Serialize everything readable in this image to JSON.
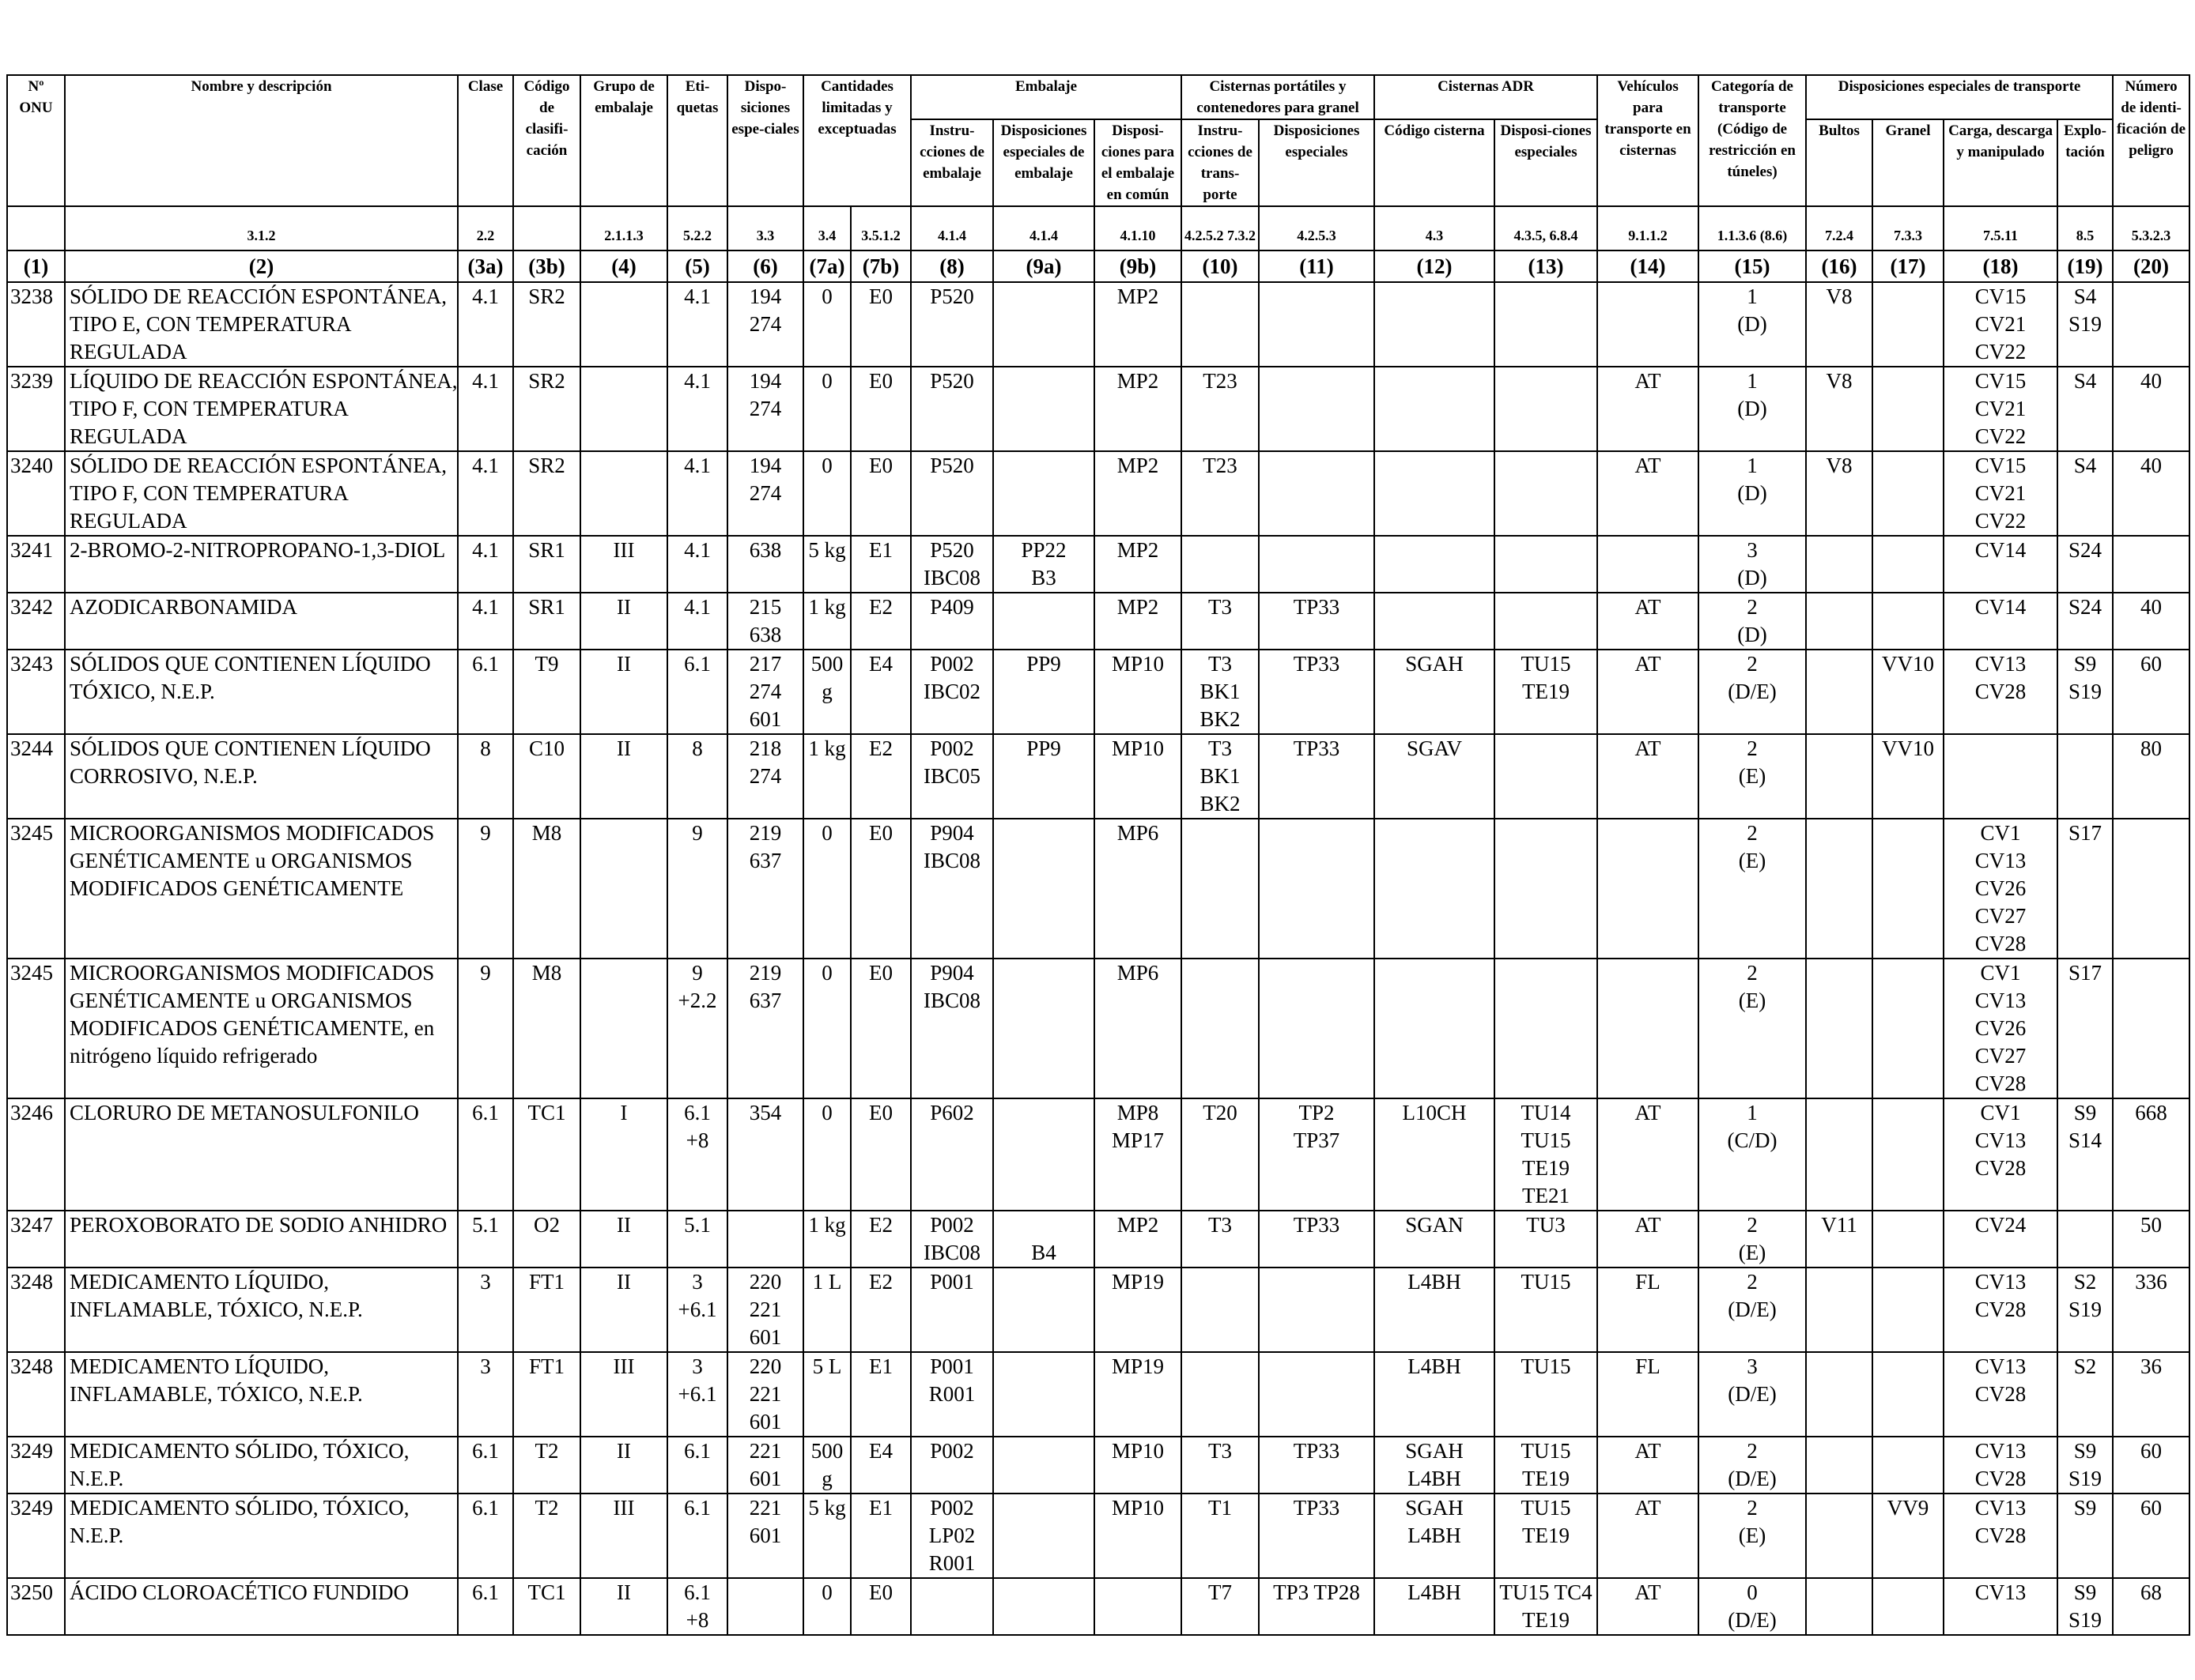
{
  "table": {
    "header": {
      "un_no": "Nº ONU",
      "name": "Nombre y descripción",
      "clase": "Clase",
      "codigo": "Código de clasifi-cación",
      "grupo": "Grupo de embalaje",
      "etiquetas": "Eti-quetas",
      "disposiciones": "Dispo-siciones espe-ciales",
      "cantidades": "Cantidades limitadas y exceptuadas",
      "embalaje": "Embalaje",
      "embalaje_instr": "Instru-cciones de embalaje",
      "embalaje_disp": "Disposiciones especiales de embalaje",
      "embalaje_comun": "Disposi-ciones para el embalaje en común",
      "cisternas_port": "Cisternas portátiles y contenedores para granel",
      "cisternas_instr": "Instru-cciones de trans-porte",
      "cisternas_disp": "Disposiciones especiales",
      "cisternas_adr": "Cisternas ADR",
      "adr_codigo": "Código cisterna",
      "adr_disp": "Disposi-ciones especiales",
      "vehiculos": "Vehículos para transporte en cisternas",
      "categoria": "Categoría de transporte (Código de restricción en túneles)",
      "disp_transporte": "Disposiciones especiales de transporte",
      "bultos": "Bultos",
      "granel": "Granel",
      "carga": "Carga, descarga y manipulado",
      "explotacion": "Explo-tación",
      "numero_peligro": "Número de identi-ficación de peligro"
    },
    "refs": [
      "",
      "3.1.2",
      "2.2",
      "",
      "2.1.1.3",
      "5.2.2",
      "3.3",
      "3.4",
      "3.5.1.2",
      "4.1.4",
      "4.1.4",
      "4.1.10",
      "4.2.5.2 7.3.2",
      "4.2.5.3",
      "4.3",
      "4.3.5, 6.8.4",
      "9.1.1.2",
      "1.1.3.6 (8.6)",
      "7.2.4",
      "7.3.3",
      "7.5.11",
      "8.5",
      "5.3.2.3"
    ],
    "col_numbers": [
      "(1)",
      "(2)",
      "(3a)",
      "(3b)",
      "(4)",
      "(5)",
      "(6)",
      "(7a)",
      "(7b)",
      "(8)",
      "(9a)",
      "(9b)",
      "(10)",
      "(11)",
      "(12)",
      "(13)",
      "(14)",
      "(15)",
      "(16)",
      "(17)",
      "(18)",
      "(19)",
      "(20)"
    ],
    "rows": [
      [
        "3238",
        [
          "SÓLIDO DE REACCIÓN ESPONTÁNEA,",
          "TIPO E, CON TEMPERATURA",
          "REGULADA"
        ],
        "4.1",
        "SR2",
        "",
        [
          "4.1"
        ],
        [
          "194",
          "274"
        ],
        "0",
        "E0",
        [
          "P520"
        ],
        [],
        [
          "MP2"
        ],
        [],
        [],
        [],
        [],
        "",
        [
          "1",
          "(D)"
        ],
        "V8",
        "",
        [
          "CV15",
          "CV21",
          "CV22"
        ],
        [
          "S4",
          "S19"
        ],
        ""
      ],
      [
        "3239",
        [
          "LÍQUIDO DE REACCIÓN ESPONTÁNEA,",
          "TIPO F, CON TEMPERATURA",
          "REGULADA"
        ],
        "4.1",
        "SR2",
        "",
        [
          "4.1"
        ],
        [
          "194",
          "274"
        ],
        "0",
        "E0",
        [
          "P520"
        ],
        [],
        [
          "MP2"
        ],
        [
          "T23"
        ],
        [],
        [],
        [],
        "AT",
        [
          "1",
          "(D)"
        ],
        "V8",
        "",
        [
          "CV15",
          "CV21",
          "CV22"
        ],
        [
          "S4"
        ],
        "40"
      ],
      [
        "3240",
        [
          "SÓLIDO DE REACCIÓN ESPONTÁNEA,",
          "TIPO F, CON TEMPERATURA",
          "REGULADA"
        ],
        "4.1",
        "SR2",
        "",
        [
          "4.1"
        ],
        [
          "194",
          "274"
        ],
        "0",
        "E0",
        [
          "P520"
        ],
        [],
        [
          "MP2"
        ],
        [
          "T23"
        ],
        [],
        [],
        [],
        "AT",
        [
          "1",
          "(D)"
        ],
        "V8",
        "",
        [
          "CV15",
          "CV21",
          "CV22"
        ],
        [
          "S4"
        ],
        "40"
      ],
      [
        "3241",
        [
          "2-BROMO-2-NITROPROPANO-1,3-DIOL"
        ],
        "4.1",
        "SR1",
        "III",
        [
          "4.1"
        ],
        [
          "638"
        ],
        "5 kg",
        "E1",
        [
          "P520",
          "IBC08"
        ],
        [
          "PP22",
          "B3"
        ],
        [
          "MP2"
        ],
        [],
        [],
        [],
        [],
        "",
        [
          "3",
          "(D)"
        ],
        "",
        "",
        [
          "CV14"
        ],
        [
          "S24"
        ],
        ""
      ],
      [
        "3242",
        [
          "AZODICARBONAMIDA"
        ],
        "4.1",
        "SR1",
        "II",
        [
          "4.1"
        ],
        [
          "215",
          "638"
        ],
        "1 kg",
        "E2",
        [
          "P409"
        ],
        [],
        [
          "MP2"
        ],
        [
          "T3"
        ],
        [
          "TP33"
        ],
        [],
        [],
        "AT",
        [
          "2",
          "(D)"
        ],
        "",
        "",
        [
          "CV14"
        ],
        [
          "S24"
        ],
        "40"
      ],
      [
        "3243",
        [
          "SÓLIDOS QUE CONTIENEN LÍQUIDO",
          "TÓXICO, N.E.P."
        ],
        "6.1",
        "T9",
        "II",
        [
          "6.1"
        ],
        [
          "217",
          "274",
          "601"
        ],
        "500 g",
        "E4",
        [
          "P002",
          "IBC02"
        ],
        [
          "PP9"
        ],
        [
          "MP10"
        ],
        [
          "T3",
          "BK1",
          "BK2"
        ],
        [
          "TP33"
        ],
        [
          "SGAH"
        ],
        [
          "TU15",
          "TE19"
        ],
        "AT",
        [
          "2",
          "(D/E)"
        ],
        "",
        "VV10",
        [
          "CV13",
          "CV28"
        ],
        [
          "S9",
          "S19"
        ],
        "60"
      ],
      [
        "3244",
        [
          "SÓLIDOS QUE CONTIENEN LÍQUIDO",
          "CORROSIVO, N.E.P."
        ],
        "8",
        "C10",
        "II",
        [
          "8"
        ],
        [
          "218",
          "274"
        ],
        "1 kg",
        "E2",
        [
          "P002",
          "IBC05"
        ],
        [
          "PP9"
        ],
        [
          "MP10"
        ],
        [
          "T3",
          "BK1",
          "BK2"
        ],
        [
          "TP33"
        ],
        [
          "SGAV"
        ],
        [],
        "AT",
        [
          "2",
          "(E)"
        ],
        "",
        "VV10",
        [],
        [],
        "80"
      ],
      [
        "3245",
        [
          "MICROORGANISMOS MODIFICADOS",
          "GENÉTICAMENTE u ORGANISMOS",
          "MODIFICADOS GENÉTICAMENTE"
        ],
        "9",
        "M8",
        "",
        [
          "9"
        ],
        [
          "219",
          "637"
        ],
        "0",
        "E0",
        [
          "P904",
          "IBC08"
        ],
        [],
        [
          "MP6"
        ],
        [],
        [],
        [],
        [],
        "",
        [
          "2",
          "(E)"
        ],
        "",
        "",
        [
          "CV1",
          "CV13",
          "CV26",
          "CV27",
          "CV28"
        ],
        [
          "S17"
        ],
        ""
      ],
      [
        "3245",
        [
          "MICROORGANISMOS MODIFICADOS",
          "GENÉTICAMENTE u ORGANISMOS",
          "MODIFICADOS GENÉTICAMENTE, en",
          "nitrógeno líquido refrigerado"
        ],
        "9",
        "M8",
        "",
        [
          "9",
          "+2.2"
        ],
        [
          "219",
          "637"
        ],
        "0",
        "E0",
        [
          "P904",
          "IBC08"
        ],
        [],
        [
          "MP6"
        ],
        [],
        [],
        [],
        [],
        "",
        [
          "2",
          "(E)"
        ],
        "",
        "",
        [
          "CV1",
          "CV13",
          "CV26",
          "CV27",
          "CV28"
        ],
        [
          "S17"
        ],
        ""
      ],
      [
        "3246",
        [
          "CLORURO DE METANOSULFONILO"
        ],
        "6.1",
        "TC1",
        "I",
        [
          "6.1",
          "+8"
        ],
        [
          "354"
        ],
        "0",
        "E0",
        [
          "P602"
        ],
        [],
        [
          "MP8",
          "MP17"
        ],
        [
          "T20"
        ],
        [
          "TP2",
          "TP37"
        ],
        [
          "L10CH"
        ],
        [
          "TU14",
          "TU15",
          "TE19",
          "TE21"
        ],
        "AT",
        [
          "1",
          "(C/D)"
        ],
        "",
        "",
        [
          "CV1",
          "CV13",
          "CV28"
        ],
        [
          "S9",
          "S14"
        ],
        "668"
      ],
      [
        "3247",
        [
          "PEROXOBORATO DE SODIO ANHIDRO"
        ],
        "5.1",
        "O2",
        "II",
        [
          "5.1"
        ],
        [],
        "1 kg",
        "E2",
        [
          "P002",
          "IBC08"
        ],
        [
          "",
          "B4"
        ],
        [
          "MP2"
        ],
        [
          "T3"
        ],
        [
          "TP33"
        ],
        [
          "SGAN"
        ],
        [
          "TU3"
        ],
        "AT",
        [
          "2",
          "(E)"
        ],
        "V11",
        "",
        [
          "CV24"
        ],
        [],
        "50"
      ],
      [
        "3248",
        [
          "MEDICAMENTO LÍQUIDO,",
          "INFLAMABLE, TÓXICO, N.E.P."
        ],
        "3",
        "FT1",
        "II",
        [
          "3",
          "+6.1"
        ],
        [
          "220",
          "221",
          "601"
        ],
        "1 L",
        "E2",
        [
          "P001"
        ],
        [],
        [
          "MP19"
        ],
        [],
        [],
        [
          "L4BH"
        ],
        [
          "TU15"
        ],
        "FL",
        [
          "2",
          "(D/E)"
        ],
        "",
        "",
        [
          "CV13",
          "CV28"
        ],
        [
          "S2",
          "S19"
        ],
        "336"
      ],
      [
        "3248",
        [
          "MEDICAMENTO LÍQUIDO,",
          "INFLAMABLE, TÓXICO, N.E.P."
        ],
        "3",
        "FT1",
        "III",
        [
          "3",
          "+6.1"
        ],
        [
          "220",
          "221",
          "601"
        ],
        "5 L",
        "E1",
        [
          "P001",
          "R001"
        ],
        [],
        [
          "MP19"
        ],
        [],
        [],
        [
          "L4BH"
        ],
        [
          "TU15"
        ],
        "FL",
        [
          "3",
          "(D/E)"
        ],
        "",
        "",
        [
          "CV13",
          "CV28"
        ],
        [
          "S2"
        ],
        "36"
      ],
      [
        "3249",
        [
          "MEDICAMENTO SÓLIDO, TÓXICO,",
          "N.E.P."
        ],
        "6.1",
        "T2",
        "II",
        [
          "6.1"
        ],
        [
          "221",
          "601"
        ],
        "500 g",
        "E4",
        [
          "P002"
        ],
        [],
        [
          "MP10"
        ],
        [
          "T3"
        ],
        [
          "TP33"
        ],
        [
          "SGAH",
          "L4BH"
        ],
        [
          "TU15",
          "TE19"
        ],
        "AT",
        [
          "2",
          "(D/E)"
        ],
        "",
        "",
        [
          "CV13",
          "CV28"
        ],
        [
          "S9",
          "S19"
        ],
        "60"
      ],
      [
        "3249",
        [
          "MEDICAMENTO SÓLIDO, TÓXICO,",
          "N.E.P."
        ],
        "6.1",
        "T2",
        "III",
        [
          "6.1"
        ],
        [
          "221",
          "601"
        ],
        "5 kg",
        "E1",
        [
          "P002",
          "LP02",
          "R001"
        ],
        [],
        [
          "MP10"
        ],
        [
          "T1"
        ],
        [
          "TP33"
        ],
        [
          "SGAH",
          "L4BH"
        ],
        [
          "TU15",
          "TE19"
        ],
        "AT",
        [
          "2",
          "(E)"
        ],
        "",
        "VV9",
        [
          "CV13",
          "CV28"
        ],
        [
          "S9"
        ],
        "60"
      ],
      [
        "3250",
        [
          "ÁCIDO CLOROACÉTICO FUNDIDO"
        ],
        "6.1",
        "TC1",
        "II",
        [
          "6.1",
          "+8"
        ],
        [],
        "0",
        "E0",
        [],
        [],
        [],
        [
          "T7"
        ],
        [
          "TP3 TP28"
        ],
        [
          "L4BH"
        ],
        [
          "TU15 TC4",
          "TE19"
        ],
        "AT",
        [
          "0",
          "(D/E)"
        ],
        "",
        "",
        [
          "CV13"
        ],
        [
          "S9",
          "S19"
        ],
        "68"
      ]
    ]
  }
}
